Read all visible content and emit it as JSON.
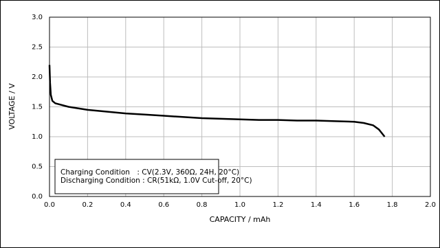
{
  "chart_data": {
    "type": "line",
    "xlabel": "CAPACITY / mAh",
    "ylabel": "VOLTAGE / V",
    "annotations": [
      "Charging Condition　: CV(2.3V, 360Ω, 24H, 20°C)",
      "Discharging Condition : CR(51kΩ, 1.0V Cut-off, 20°C)"
    ],
    "x": [
      0.0,
      0.003,
      0.007,
      0.015,
      0.03,
      0.1,
      0.2,
      0.3,
      0.4,
      0.5,
      0.6,
      0.7,
      0.8,
      0.9,
      1.0,
      1.1,
      1.2,
      1.3,
      1.4,
      1.5,
      1.6,
      1.65,
      1.7,
      1.73,
      1.76
    ],
    "series": [
      {
        "color": "#000000",
        "values": [
          2.2,
          1.9,
          1.7,
          1.6,
          1.56,
          1.5,
          1.45,
          1.42,
          1.39,
          1.37,
          1.35,
          1.33,
          1.31,
          1.3,
          1.29,
          1.28,
          1.28,
          1.27,
          1.27,
          1.26,
          1.25,
          1.23,
          1.19,
          1.12,
          1.0
        ]
      }
    ],
    "xlim": [
      0,
      2
    ],
    "ylim": [
      0,
      3
    ],
    "xticks": [
      {
        "value": 0,
        "label": "0.0"
      },
      0.2,
      0.4,
      0.6,
      0.8,
      {
        "value": 1,
        "label": "1.0"
      },
      1.2,
      1.4,
      1.6,
      1.8,
      {
        "value": 2,
        "label": "2.0"
      }
    ],
    "yticks": [
      {
        "value": 0,
        "label": "0.0"
      },
      0.5,
      {
        "value": 1,
        "label": "1.0"
      },
      1.5,
      {
        "value": 2,
        "label": "2.0"
      },
      2.5,
      {
        "value": 3,
        "label": "3.0"
      }
    ],
    "grid": true
  }
}
